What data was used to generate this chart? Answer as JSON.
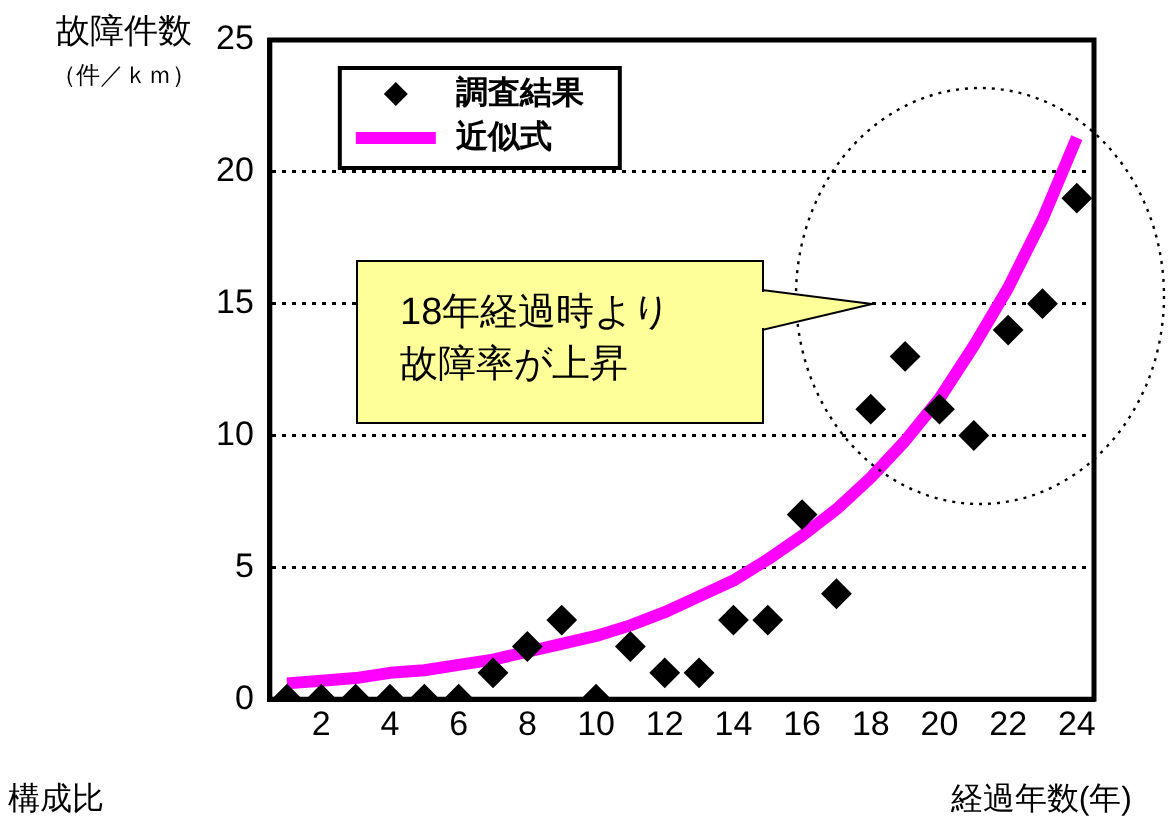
{
  "chart_data": {
    "type": "scatter",
    "ylabel": "故障件数（件／ｋｍ）",
    "xlabel": "経過年数(年)",
    "xlim": [
      0.5,
      24.5
    ],
    "xticks": [
      2,
      4,
      6,
      8,
      10,
      12,
      14,
      16,
      18,
      20,
      22,
      24
    ],
    "ylim": [
      0,
      25
    ],
    "yticks": [
      0,
      5,
      10,
      15,
      20,
      25
    ],
    "grid": "y",
    "legend": "top left",
    "annotations": [
      "18年経過時より故障率が上昇",
      "構成比"
    ],
    "series": [
      {
        "name": "調査結果",
        "marker": "diamond",
        "color": "#000000",
        "x": [
          1,
          2,
          3,
          4,
          5,
          6,
          7,
          8,
          9,
          10,
          11,
          12,
          13,
          14,
          15,
          16,
          17,
          18,
          19,
          20,
          21,
          22,
          23,
          24
        ],
        "values": [
          0,
          0,
          0,
          0,
          0,
          0,
          1,
          2,
          3,
          0,
          2,
          1,
          1,
          3,
          3,
          7,
          4,
          11,
          13,
          11,
          10,
          14,
          15,
          19
        ]
      },
      {
        "name": "近似式",
        "type": "line",
        "marker": "none",
        "line_style": "solid",
        "color": "#ff00ff",
        "x": [
          1,
          2,
          3,
          4,
          5,
          6,
          7,
          8,
          9,
          10,
          11,
          12,
          13,
          14,
          15,
          16,
          17,
          18,
          19,
          20,
          21,
          22,
          23,
          24
        ],
        "values": [
          0.6,
          0.7,
          0.8,
          1.0,
          1.1,
          1.3,
          1.5,
          1.8,
          2.1,
          2.4,
          2.8,
          3.3,
          3.9,
          4.5,
          5.3,
          6.2,
          7.2,
          8.4,
          9.8,
          11.4,
          13.4,
          15.6,
          18.2,
          21.3
        ]
      }
    ]
  }
}
